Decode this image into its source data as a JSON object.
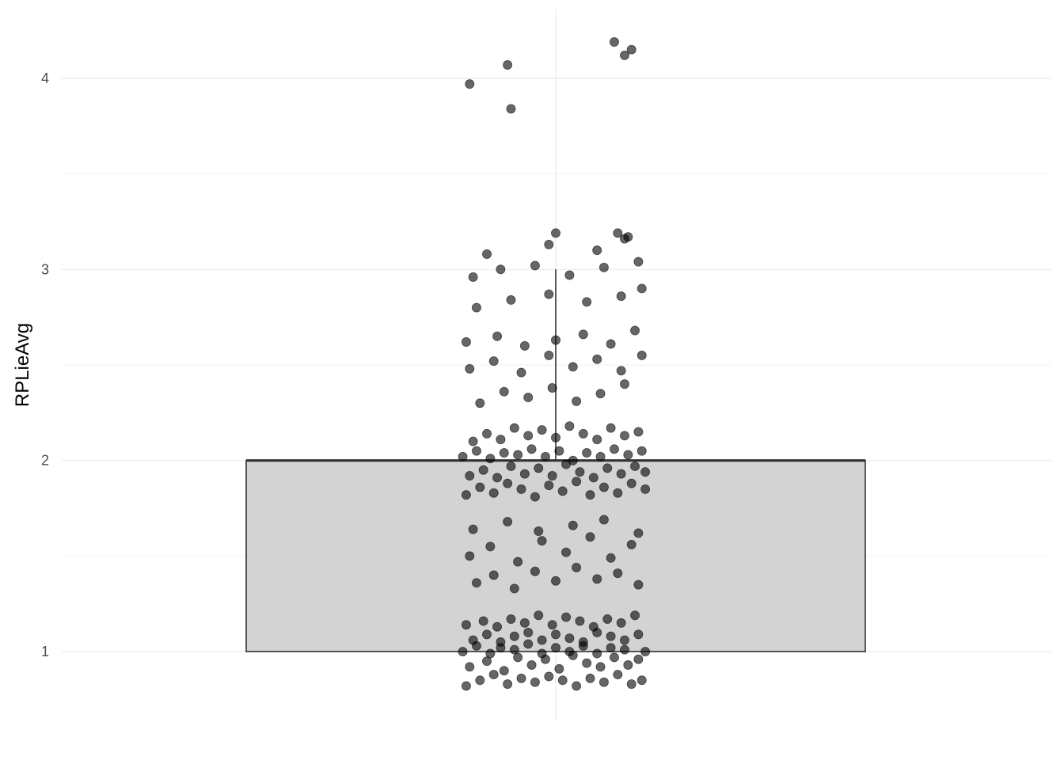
{
  "chart_data": {
    "type": "box",
    "ylabel": "RPLieAvg",
    "xlabel": "",
    "title": "",
    "ylim": [
      0.64,
      4.36
    ],
    "yticks": [
      1,
      2,
      3,
      4
    ],
    "y_minor_ticks": [
      1.5,
      2.5,
      3.5
    ],
    "grid": true,
    "box": {
      "lower_hinge": 1.0,
      "median": 2.0,
      "upper_hinge": 2.0,
      "upper_whisker": 3.0,
      "lower_whisker": 1.0,
      "fill": "#d3d3d3",
      "outline": "#333333"
    },
    "points_color": "#000000",
    "points_alpha": 0.6,
    "jitter_points": [
      [
        -0.26,
        0.82
      ],
      [
        -0.22,
        0.85
      ],
      [
        -0.18,
        0.88
      ],
      [
        -0.14,
        0.83
      ],
      [
        -0.1,
        0.86
      ],
      [
        -0.06,
        0.84
      ],
      [
        -0.02,
        0.87
      ],
      [
        0.02,
        0.85
      ],
      [
        0.06,
        0.82
      ],
      [
        0.1,
        0.86
      ],
      [
        0.14,
        0.84
      ],
      [
        0.18,
        0.88
      ],
      [
        0.22,
        0.83
      ],
      [
        0.25,
        0.85
      ],
      [
        -0.25,
        0.92
      ],
      [
        -0.2,
        0.95
      ],
      [
        -0.15,
        0.9
      ],
      [
        -0.11,
        0.97
      ],
      [
        -0.07,
        0.93
      ],
      [
        -0.03,
        0.96
      ],
      [
        0.01,
        0.91
      ],
      [
        0.05,
        0.98
      ],
      [
        0.09,
        0.94
      ],
      [
        0.13,
        0.92
      ],
      [
        0.17,
        0.97
      ],
      [
        0.21,
        0.93
      ],
      [
        0.24,
        0.96
      ],
      [
        -0.27,
        1.0
      ],
      [
        -0.23,
        1.03
      ],
      [
        -0.19,
        0.99
      ],
      [
        -0.16,
        1.02
      ],
      [
        -0.12,
        1.01
      ],
      [
        -0.08,
        1.04
      ],
      [
        -0.04,
        0.99
      ],
      [
        0.0,
        1.02
      ],
      [
        0.04,
        1.0
      ],
      [
        0.08,
        1.03
      ],
      [
        0.12,
        0.99
      ],
      [
        0.16,
        1.02
      ],
      [
        0.2,
        1.01
      ],
      [
        0.26,
        1.0
      ],
      [
        -0.24,
        1.06
      ],
      [
        -0.2,
        1.09
      ],
      [
        -0.16,
        1.05
      ],
      [
        -0.12,
        1.08
      ],
      [
        -0.08,
        1.1
      ],
      [
        -0.04,
        1.06
      ],
      [
        0.0,
        1.09
      ],
      [
        0.04,
        1.07
      ],
      [
        0.08,
        1.05
      ],
      [
        0.12,
        1.1
      ],
      [
        0.16,
        1.08
      ],
      [
        0.2,
        1.06
      ],
      [
        0.24,
        1.09
      ],
      [
        -0.26,
        1.14
      ],
      [
        -0.21,
        1.16
      ],
      [
        -0.17,
        1.13
      ],
      [
        -0.13,
        1.17
      ],
      [
        -0.09,
        1.15
      ],
      [
        -0.05,
        1.19
      ],
      [
        -0.01,
        1.14
      ],
      [
        0.03,
        1.18
      ],
      [
        0.07,
        1.16
      ],
      [
        0.11,
        1.13
      ],
      [
        0.15,
        1.17
      ],
      [
        0.19,
        1.15
      ],
      [
        0.23,
        1.19
      ],
      [
        -0.23,
        1.36
      ],
      [
        -0.18,
        1.4
      ],
      [
        -0.12,
        1.33
      ],
      [
        -0.06,
        1.42
      ],
      [
        0.0,
        1.37
      ],
      [
        0.06,
        1.44
      ],
      [
        0.12,
        1.38
      ],
      [
        0.18,
        1.41
      ],
      [
        0.24,
        1.35
      ],
      [
        -0.25,
        1.5
      ],
      [
        -0.19,
        1.55
      ],
      [
        -0.11,
        1.47
      ],
      [
        -0.04,
        1.58
      ],
      [
        0.03,
        1.52
      ],
      [
        0.1,
        1.6
      ],
      [
        0.16,
        1.49
      ],
      [
        0.22,
        1.56
      ],
      [
        -0.24,
        1.64
      ],
      [
        -0.14,
        1.68
      ],
      [
        -0.05,
        1.63
      ],
      [
        0.05,
        1.66
      ],
      [
        0.14,
        1.69
      ],
      [
        0.24,
        1.62
      ],
      [
        -0.26,
        1.82
      ],
      [
        -0.22,
        1.86
      ],
      [
        -0.18,
        1.83
      ],
      [
        -0.14,
        1.88
      ],
      [
        -0.1,
        1.85
      ],
      [
        -0.06,
        1.81
      ],
      [
        -0.02,
        1.87
      ],
      [
        0.02,
        1.84
      ],
      [
        0.06,
        1.89
      ],
      [
        0.1,
        1.82
      ],
      [
        0.14,
        1.86
      ],
      [
        0.18,
        1.83
      ],
      [
        0.22,
        1.88
      ],
      [
        0.26,
        1.85
      ],
      [
        -0.25,
        1.92
      ],
      [
        -0.21,
        1.95
      ],
      [
        -0.17,
        1.91
      ],
      [
        -0.13,
        1.97
      ],
      [
        -0.09,
        1.93
      ],
      [
        -0.05,
        1.96
      ],
      [
        -0.01,
        1.92
      ],
      [
        0.03,
        1.98
      ],
      [
        0.07,
        1.94
      ],
      [
        0.11,
        1.91
      ],
      [
        0.15,
        1.96
      ],
      [
        0.19,
        1.93
      ],
      [
        0.23,
        1.97
      ],
      [
        0.26,
        1.94
      ],
      [
        -0.27,
        2.02
      ],
      [
        -0.23,
        2.05
      ],
      [
        -0.19,
        2.01
      ],
      [
        -0.15,
        2.04
      ],
      [
        -0.11,
        2.03
      ],
      [
        -0.07,
        2.06
      ],
      [
        -0.03,
        2.02
      ],
      [
        0.01,
        2.05
      ],
      [
        0.05,
        2.0
      ],
      [
        0.09,
        2.04
      ],
      [
        0.13,
        2.02
      ],
      [
        0.17,
        2.06
      ],
      [
        0.21,
        2.03
      ],
      [
        0.25,
        2.05
      ],
      [
        -0.24,
        2.1
      ],
      [
        -0.2,
        2.14
      ],
      [
        -0.16,
        2.11
      ],
      [
        -0.12,
        2.17
      ],
      [
        -0.08,
        2.13
      ],
      [
        -0.04,
        2.16
      ],
      [
        0.0,
        2.12
      ],
      [
        0.04,
        2.18
      ],
      [
        0.08,
        2.14
      ],
      [
        0.12,
        2.11
      ],
      [
        0.16,
        2.17
      ],
      [
        0.2,
        2.13
      ],
      [
        0.24,
        2.15
      ],
      [
        -0.22,
        2.3
      ],
      [
        -0.15,
        2.36
      ],
      [
        -0.08,
        2.33
      ],
      [
        -0.01,
        2.38
      ],
      [
        0.06,
        2.31
      ],
      [
        0.13,
        2.35
      ],
      [
        0.2,
        2.4
      ],
      [
        -0.25,
        2.48
      ],
      [
        -0.18,
        2.52
      ],
      [
        -0.1,
        2.46
      ],
      [
        -0.02,
        2.55
      ],
      [
        0.05,
        2.49
      ],
      [
        0.12,
        2.53
      ],
      [
        0.19,
        2.47
      ],
      [
        0.25,
        2.55
      ],
      [
        -0.26,
        2.62
      ],
      [
        -0.17,
        2.65
      ],
      [
        -0.09,
        2.6
      ],
      [
        0.0,
        2.63
      ],
      [
        0.08,
        2.66
      ],
      [
        0.16,
        2.61
      ],
      [
        0.23,
        2.68
      ],
      [
        -0.23,
        2.8
      ],
      [
        -0.13,
        2.84
      ],
      [
        -0.02,
        2.87
      ],
      [
        0.09,
        2.83
      ],
      [
        0.19,
        2.86
      ],
      [
        0.25,
        2.9
      ],
      [
        -0.24,
        2.96
      ],
      [
        -0.16,
        3.0
      ],
      [
        -0.06,
        3.02
      ],
      [
        0.04,
        2.97
      ],
      [
        0.14,
        3.01
      ],
      [
        0.24,
        3.04
      ],
      [
        -0.2,
        3.08
      ],
      [
        -0.02,
        3.13
      ],
      [
        0.12,
        3.1
      ],
      [
        0.2,
        3.16
      ],
      [
        0.0,
        3.19
      ],
      [
        0.18,
        3.19
      ],
      [
        0.21,
        3.17
      ],
      [
        -0.25,
        3.97
      ],
      [
        -0.14,
        4.07
      ],
      [
        -0.13,
        3.84
      ],
      [
        0.17,
        4.19
      ],
      [
        0.2,
        4.12
      ],
      [
        0.22,
        4.15
      ]
    ]
  }
}
